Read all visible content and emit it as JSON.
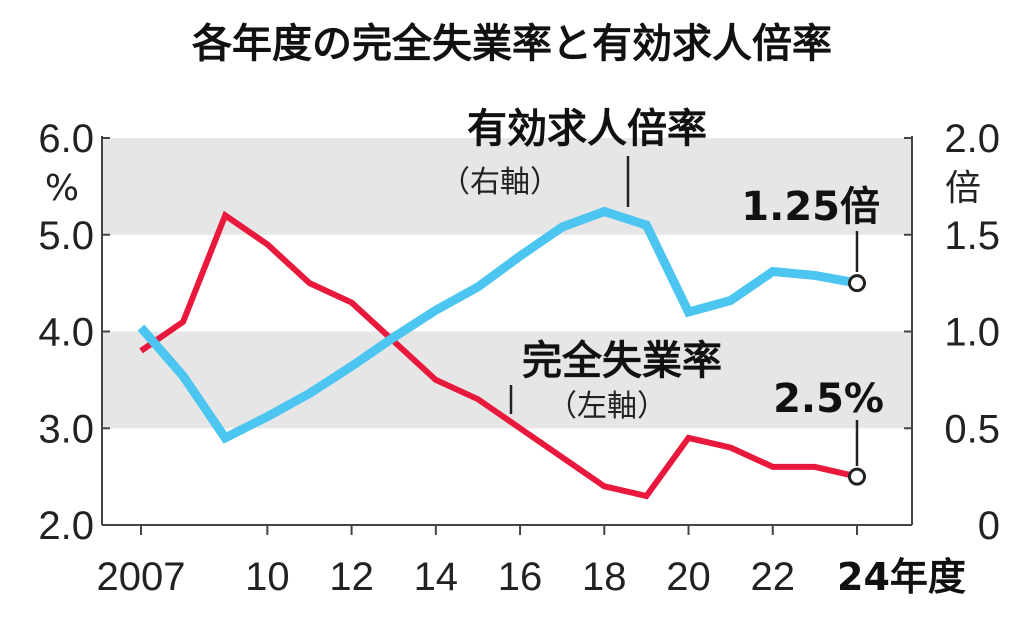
{
  "title": "各年度の完全失業率と有効求人倍率",
  "chart_data": {
    "type": "line",
    "x": [
      "2007",
      "08",
      "09",
      "10",
      "11",
      "12",
      "13",
      "14",
      "15",
      "16",
      "17",
      "18",
      "19",
      "20",
      "21",
      "22",
      "23",
      "24"
    ],
    "x_tick_labels": [
      "2007",
      "10",
      "12",
      "14",
      "16",
      "18",
      "20",
      "22",
      "24年度"
    ],
    "left_axis": {
      "unit": "%",
      "ylim": [
        2.0,
        6.0
      ],
      "ticks": [
        "2.0",
        "3.0",
        "4.0",
        "5.0",
        "6.0"
      ]
    },
    "right_axis": {
      "unit": "倍",
      "ylim": [
        0,
        2.0
      ],
      "ticks": [
        "0",
        "0.5",
        "1.0",
        "1.5",
        "2.0"
      ]
    },
    "series": [
      {
        "name": "完全失業率",
        "sub": "（左軸）",
        "axis": "left",
        "color": "#e8193c",
        "values": [
          3.8,
          4.1,
          5.2,
          4.9,
          4.5,
          4.3,
          3.9,
          3.5,
          3.3,
          3.0,
          2.7,
          2.4,
          2.3,
          2.9,
          2.8,
          2.6,
          2.6,
          2.5
        ],
        "end_label": "2.5%"
      },
      {
        "name": "有効求人倍率",
        "sub": "（右軸）",
        "axis": "right",
        "color": "#4cc5f0",
        "values": [
          1.02,
          0.77,
          0.45,
          0.56,
          0.68,
          0.82,
          0.97,
          1.11,
          1.23,
          1.39,
          1.54,
          1.62,
          1.55,
          1.1,
          1.16,
          1.31,
          1.29,
          1.25
        ],
        "end_label": "1.25倍"
      }
    ],
    "bands": "gray bands at 5.0–6.0 and 3.0–4.0 (left axis)",
    "grid": false,
    "legend": "inline labels"
  }
}
